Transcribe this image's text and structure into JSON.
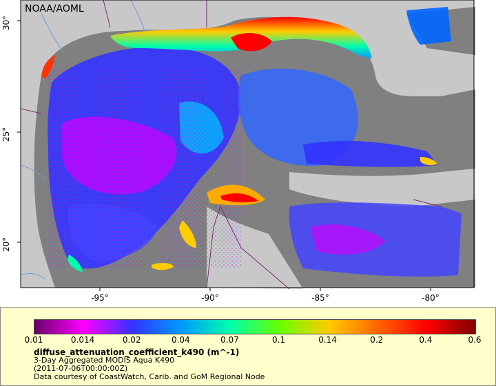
{
  "credit": "NOAA/AOML",
  "axes": {
    "lon_ticks": [
      "-95°",
      "-90°",
      "-85°",
      "-80°"
    ],
    "lat_ticks": [
      "30°",
      "25°",
      "20°"
    ]
  },
  "legend": {
    "variable": "diffuse_attenuation_coefficient_k490 (m^-1)",
    "product": "3-Day Aggregated MODIS Aqua K490",
    "date": "(2011-07-06T00:00:00Z)",
    "source": "Data courtesy of CoastWatch, Carib. and GoM Regional Node",
    "scale_labels": [
      "0.01",
      "0.014",
      "0.02",
      "0.04",
      "0.07",
      "0.1",
      "0.14",
      "0.2",
      "0.4",
      "0.6"
    ],
    "scale_type": "log",
    "colormap": [
      "#6a006a",
      "#ff00ff",
      "#3333ff",
      "#0099ff",
      "#00ffaa",
      "#66ff00",
      "#ffcc00",
      "#ff6600",
      "#ff0000",
      "#800000"
    ]
  },
  "colors": {
    "land": "#c8c8c8",
    "no_data": "#808080",
    "panel_bg": "#ffffcc"
  }
}
